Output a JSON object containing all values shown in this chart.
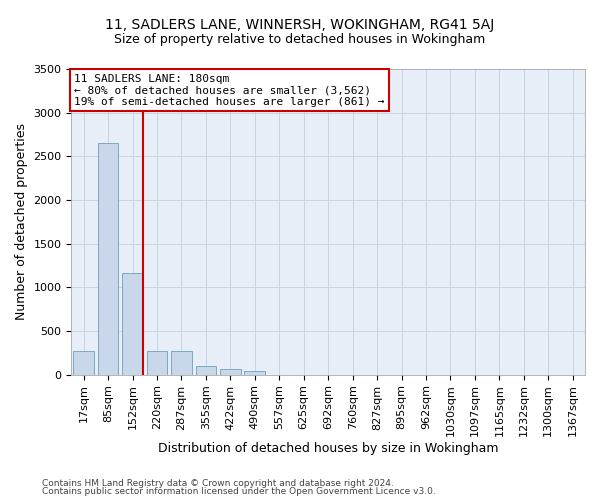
{
  "title1": "11, SADLERS LANE, WINNERSH, WOKINGHAM, RG41 5AJ",
  "title2": "Size of property relative to detached houses in Wokingham",
  "xlabel": "Distribution of detached houses by size in Wokingham",
  "ylabel": "Number of detached properties",
  "footer1": "Contains HM Land Registry data © Crown copyright and database right 2024.",
  "footer2": "Contains public sector information licensed under the Open Government Licence v3.0.",
  "annotation_line1": "11 SADLERS LANE: 180sqm",
  "annotation_line2": "← 80% of detached houses are smaller (3,562)",
  "annotation_line3": "19% of semi-detached houses are larger (861) →",
  "bar_color": "#c8d8ea",
  "bar_edge_color": "#7baabf",
  "grid_color": "#c8d4e4",
  "background_color": "#e8eef8",
  "red_line_color": "#cc0000",
  "annotation_box_color": "#cc0000",
  "categories": [
    "17sqm",
    "85sqm",
    "152sqm",
    "220sqm",
    "287sqm",
    "355sqm",
    "422sqm",
    "490sqm",
    "557sqm",
    "625sqm",
    "692sqm",
    "760sqm",
    "827sqm",
    "895sqm",
    "962sqm",
    "1030sqm",
    "1097sqm",
    "1165sqm",
    "1232sqm",
    "1300sqm",
    "1367sqm"
  ],
  "values": [
    270,
    2650,
    1160,
    275,
    275,
    105,
    65,
    40,
    0,
    0,
    0,
    0,
    0,
    0,
    0,
    0,
    0,
    0,
    0,
    0,
    0
  ],
  "red_line_x": 2.43,
  "ylim": [
    0,
    3500
  ],
  "yticks": [
    0,
    500,
    1000,
    1500,
    2000,
    2500,
    3000,
    3500
  ],
  "title1_fontsize": 10,
  "title2_fontsize": 9,
  "xlabel_fontsize": 9,
  "ylabel_fontsize": 9,
  "tick_fontsize": 8,
  "footer_fontsize": 6.5,
  "annotation_fontsize": 8
}
